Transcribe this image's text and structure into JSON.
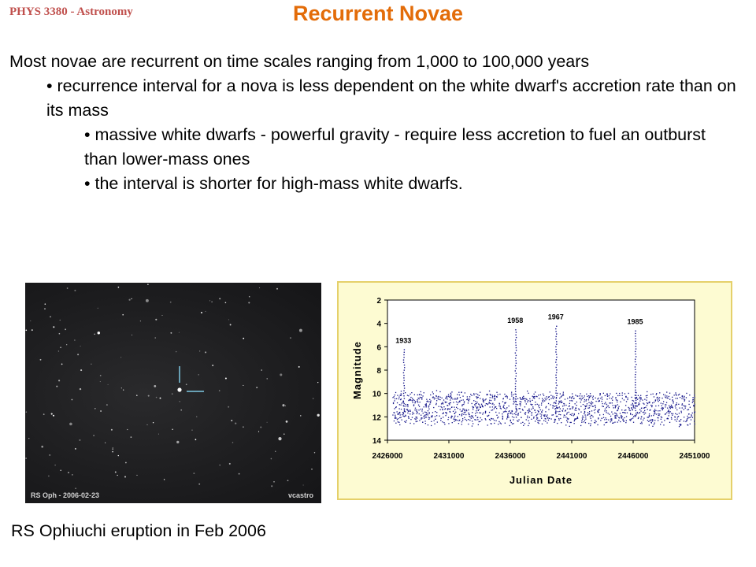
{
  "slide": {
    "course": "PHYS 3380 - Astronomy",
    "title": "Recurrent Novae",
    "bullets": [
      "Most novae are recurrent on time scales ranging from 1,000 to 100,000 years",
      "• recurrence interval for a nova is less dependent on the white dwarf's accretion rate than on its mass",
      "• massive white dwarfs - powerful gravity - require less accretion to fuel an outburst than lower-mass ones",
      "• the interval is shorter for high-mass white dwarfs."
    ],
    "caption": "RS Ophiuchi eruption in Feb 2006"
  },
  "photo": {
    "label_left": "RS Oph - 2006-02-23",
    "label_right": "vcastro",
    "marker_color": "#7ec8e3"
  },
  "chart_data": {
    "type": "scatter",
    "title": "",
    "xlabel": "Julian Date",
    "ylabel": "Magnitude",
    "xlim": [
      2426000,
      2451000
    ],
    "ylim": [
      14,
      2
    ],
    "y_inverted": true,
    "xticks": [
      2426000,
      2431000,
      2436000,
      2441000,
      2446000,
      2451000
    ],
    "yticks": [
      2,
      4,
      6,
      8,
      10,
      12,
      14
    ],
    "quiescent_magnitude_range": [
      10,
      12.5
    ],
    "eruptions": [
      {
        "label": "1933",
        "x": 2427300,
        "peak": 6.2
      },
      {
        "label": "1958",
        "x": 2436400,
        "peak": 4.5
      },
      {
        "label": "1967",
        "x": 2439700,
        "peak": 4.2
      },
      {
        "label": "1985",
        "x": 2446160,
        "peak": 4.6
      }
    ],
    "point_color": "#1a1a8c",
    "background": "#fdfbd2",
    "border_color": "#e5d06a"
  }
}
